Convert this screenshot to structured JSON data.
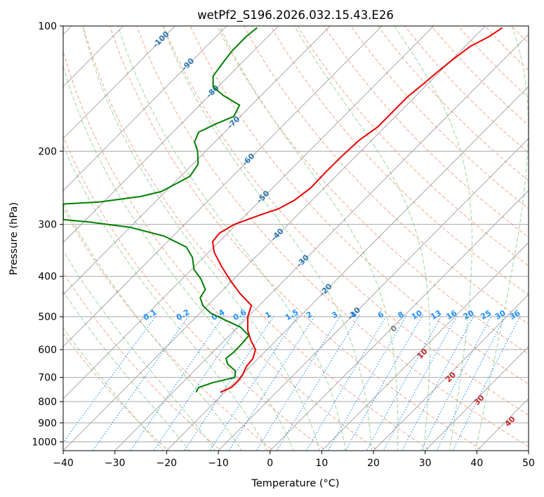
{
  "chart_data": {
    "type": "line",
    "title": "wetPf2_S196.2026.032.15.43.E26",
    "xlabel": "Temperature (°C)",
    "ylabel": "Pressure (hPa)",
    "xlim": [
      -40,
      50
    ],
    "ylim": [
      1050,
      100
    ],
    "y_scale": "log",
    "x_ticks": [
      -40,
      -30,
      -20,
      -10,
      0,
      10,
      20,
      30,
      40,
      50
    ],
    "x_tick_labels": [
      "−40",
      "−30",
      "−20",
      "−10",
      "0",
      "10",
      "20",
      "30",
      "40",
      "50"
    ],
    "y_ticks": [
      1000,
      900,
      800,
      700,
      600,
      500,
      400,
      300,
      200,
      100
    ],
    "y_tick_labels": [
      "1000",
      "900",
      "800",
      "700",
      "600",
      "500",
      "400",
      "300",
      "200",
      "100"
    ],
    "grid": true,
    "colors": {
      "temperature": "#ee0000",
      "dewpoint": "#008000",
      "isotherm": "#808080",
      "dry_adiabat": "#f4a58a",
      "moist_adiabat": "#9fd49f",
      "mixing_ratio": "#1e90ff",
      "isotherm_label": "#2e75b0",
      "wetbulb_label": "#cc2222"
    },
    "series": [
      {
        "key": "temperature",
        "points": [
          [
            -9.6,
            760
          ],
          [
            -7.5,
            740
          ],
          [
            -6.2,
            715
          ],
          [
            -5.3,
            690
          ],
          [
            -4.6,
            660
          ],
          [
            -3.3,
            630
          ],
          [
            -2.8,
            600
          ],
          [
            -3.7,
            570
          ],
          [
            -4.3,
            540
          ],
          [
            -4.3,
            500
          ],
          [
            -3.6,
            470
          ],
          [
            -5.8,
            440
          ],
          [
            -7.6,
            410
          ],
          [
            -9.3,
            380
          ],
          [
            -10.8,
            350
          ],
          [
            -11.1,
            330
          ],
          [
            -9.8,
            315
          ],
          [
            -6.9,
            300
          ],
          [
            -2.0,
            285
          ],
          [
            1.7,
            275
          ],
          [
            4.8,
            262
          ],
          [
            7.9,
            245
          ],
          [
            10.7,
            225
          ],
          [
            14.0,
            205
          ],
          [
            17.3,
            188
          ],
          [
            20.8,
            175
          ],
          [
            23.9,
            160
          ],
          [
            26.6,
            148
          ],
          [
            29.6,
            138
          ],
          [
            32.7,
            128
          ],
          [
            35.5,
            120
          ],
          [
            38.7,
            112
          ],
          [
            42.4,
            106
          ],
          [
            44.9,
            101
          ]
        ]
      },
      {
        "key": "dewpoint",
        "points": [
          [
            -14.3,
            760
          ],
          [
            -13.8,
            740
          ],
          [
            -11.0,
            720
          ],
          [
            -6.8,
            700
          ],
          [
            -6.7,
            675
          ],
          [
            -8.2,
            650
          ],
          [
            -8.5,
            630
          ],
          [
            -7.1,
            610
          ],
          [
            -5.4,
            580
          ],
          [
            -4.1,
            555
          ],
          [
            -5.7,
            530
          ],
          [
            -8.6,
            510
          ],
          [
            -11.5,
            490
          ],
          [
            -13.0,
            470
          ],
          [
            -13.5,
            450
          ],
          [
            -12.5,
            430
          ],
          [
            -13.4,
            405
          ],
          [
            -14.7,
            385
          ],
          [
            -15.0,
            360
          ],
          [
            -16.2,
            340
          ],
          [
            -20.5,
            320
          ],
          [
            -27.0,
            305
          ],
          [
            -35.0,
            296
          ],
          [
            -40.0,
            292
          ],
          [
            -40.0,
            268
          ],
          [
            -33.0,
            265
          ],
          [
            -25.0,
            257
          ],
          [
            -21.0,
            250
          ],
          [
            -15.5,
            230
          ],
          [
            -13.9,
            215
          ],
          [
            -14.0,
            200
          ],
          [
            -14.6,
            190
          ],
          [
            -13.8,
            180
          ],
          [
            -10.5,
            172
          ],
          [
            -7.0,
            165
          ],
          [
            -5.9,
            155
          ],
          [
            -9.0,
            147
          ],
          [
            -11.0,
            140
          ],
          [
            -11.0,
            132
          ],
          [
            -9.4,
            124
          ],
          [
            -7.4,
            115
          ],
          [
            -4.6,
            106
          ],
          [
            -2.5,
            101
          ]
        ]
      }
    ],
    "isotherm_labels": [
      "-100",
      "-90",
      "-80",
      "-70",
      "-60",
      "-50",
      "-40",
      "-30",
      "-20",
      "-10"
    ],
    "mixing_ratio_labels": [
      "0.1",
      "0.2",
      "0.4",
      "0.6",
      "1",
      "1.5",
      "2",
      "3",
      "4",
      "6",
      "8",
      "10",
      "13",
      "16",
      "20",
      "25",
      "30",
      "36"
    ],
    "wetbulb_labels": [
      "0",
      "10",
      "20",
      "30",
      "40"
    ]
  }
}
